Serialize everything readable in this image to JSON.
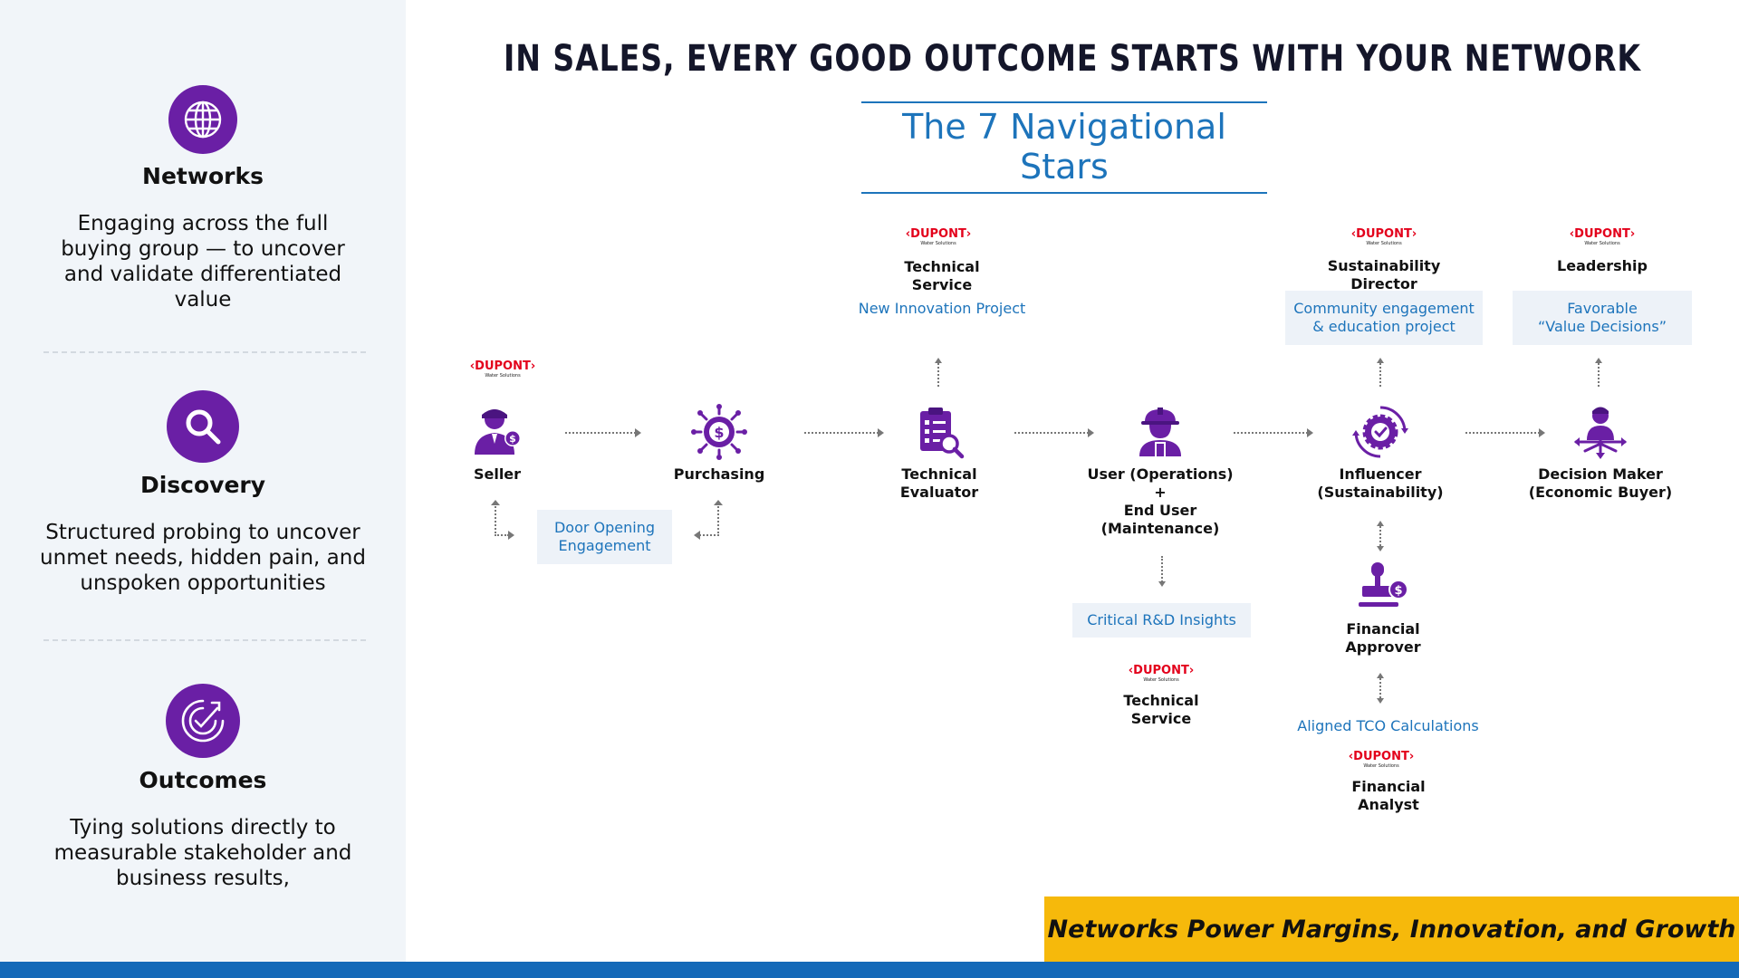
{
  "header": {
    "title": "IN SALES, EVERY GOOD OUTCOME STARTS WITH YOUR NETWORK",
    "subtitle": "The 7 Navigational Stars"
  },
  "sidebar": {
    "sections": [
      {
        "title": "Networks",
        "icon": "globe-icon",
        "description": "Engaging across the full buying group — to uncover and validate differentiated value"
      },
      {
        "title": "Discovery",
        "icon": "magnifier-icon",
        "description": "Structured probing to uncover unmet needs, hidden pain, and unspoken opportunities"
      },
      {
        "title": "Outcomes",
        "icon": "target-check-icon",
        "description": "Tying solutions directly to measurable stakeholder and business results,"
      }
    ]
  },
  "brand": {
    "logo": "DUPONT",
    "sub": "Water Solutions"
  },
  "diagram": {
    "nodes": [
      {
        "label": "Seller",
        "icon": "seller-icon"
      },
      {
        "label": "Purchasing",
        "icon": "dollar-gear-icon"
      },
      {
        "label": "Technical\nEvaluator",
        "icon": "checklist-magnifier-icon"
      },
      {
        "label": "User (Operations)\n+\nEnd User\n(Maintenance)",
        "icon": "worker-hardhat-icon"
      },
      {
        "label": "Influencer\n(Sustainability)",
        "icon": "gear-check-icon"
      },
      {
        "label": "Decision Maker\n(Economic Buyer)",
        "icon": "decision-maker-icon"
      },
      {
        "label": "Financial\nApprover",
        "icon": "stamp-dollar-icon"
      }
    ],
    "people": {
      "tech_service_top": "Technical\nService",
      "sustainability_director": "Sustainability\nDirector",
      "leadership": "Leadership",
      "tech_service_bottom": "Technical\nService",
      "financial_analyst": "Financial\nAnalyst"
    },
    "notes": {
      "door_opening": "Door Opening\nEngagement",
      "new_innovation": "New Innovation Project",
      "community": "Community engagement\n& education project",
      "favorable": "Favorable\n“Value Decisions”",
      "critical_rd": "Critical R&D Insights",
      "aligned_tco": "Aligned TCO Calculations"
    }
  },
  "banner": {
    "text": "Networks Power Margins, Innovation, and Growth"
  },
  "colors": {
    "purple": "#6a1fa5",
    "blue": "#1d74bb",
    "yellow": "#f6b90b",
    "dupont_red": "#e3001b",
    "panel": "#f1f5f9"
  }
}
